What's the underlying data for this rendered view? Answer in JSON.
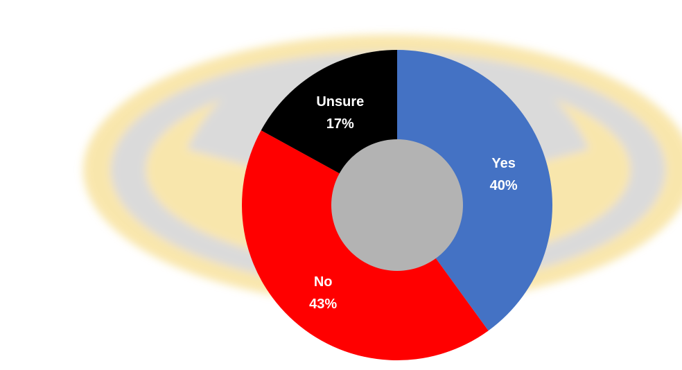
{
  "chart_data": {
    "type": "pie",
    "variant": "donut",
    "title": "",
    "legend": "none",
    "slices": [
      {
        "label": "Yes",
        "value": 40,
        "value_label": "40%",
        "color": "#4472C4",
        "label_color": "#FFFFFF"
      },
      {
        "label": "No",
        "value": 43,
        "value_label": "43%",
        "color": "#FF0000",
        "label_color": "#FFFFFF"
      },
      {
        "label": "Unsure",
        "value": 17,
        "value_label": "17%",
        "color": "#000000",
        "label_color": "#FFFFFF"
      }
    ],
    "hole_color": "#B3B3B3"
  },
  "background": {
    "emblem": "radiation-symbol-icon",
    "colors": {
      "gold": "#F4D36A",
      "gray": "#BDBDBD"
    }
  }
}
